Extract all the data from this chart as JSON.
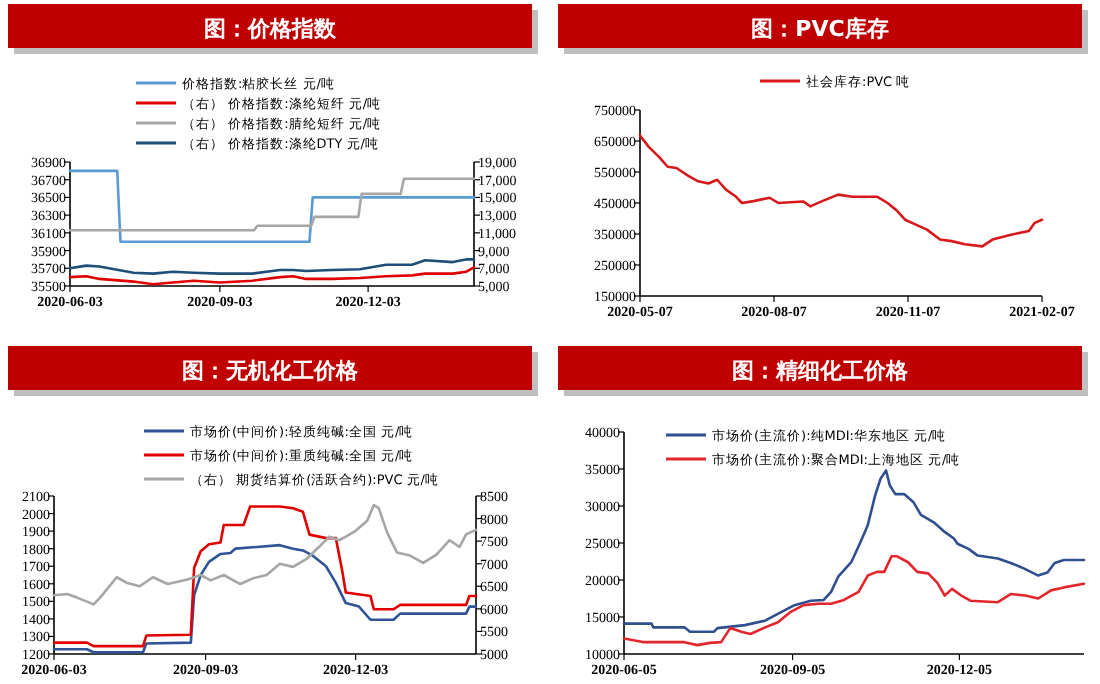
{
  "chart_data": [
    {
      "type": "line",
      "title": "图：价格指数",
      "legend": "top",
      "xlim": [
        "2020-06-03",
        "2021-02-06"
      ],
      "xticks": [
        "2020-06-03",
        "2020-09-03",
        "2020-12-03"
      ],
      "ylim": [
        35500,
        36900
      ],
      "yticks": [
        35500,
        35700,
        35900,
        36100,
        36300,
        36500,
        36700,
        36900
      ],
      "y2lim": [
        5000,
        19000
      ],
      "y2ticks": [
        {
          "value": 5000,
          "label": "5,000"
        },
        {
          "value": 7000,
          "label": "7,000"
        },
        {
          "value": 9000,
          "label": "9,000"
        },
        {
          "value": 11000,
          "label": "11,000"
        },
        {
          "value": 13000,
          "label": "13,000"
        },
        {
          "value": 15000,
          "label": "15,000"
        },
        {
          "value": 17000,
          "label": "17,000"
        },
        {
          "value": 19000,
          "label": "19,000"
        }
      ],
      "series": [
        {
          "name": "价格指数:粘胶长丝 元/吨",
          "color": "#5b9bd5",
          "x": [
            "2020-06-03",
            "2020-07-02",
            "2020-07-04",
            "2020-10-28",
            "2020-10-30",
            "2021-02-06"
          ],
          "values": [
            36800,
            36800,
            36000,
            36000,
            36500,
            36500
          ]
        },
        {
          "name": "（右） 价格指数:涤纶短纤 元/吨",
          "color": "#e00000",
          "axis": "y2",
          "x": [
            "2020-06-03",
            "2020-06-13",
            "2020-06-21",
            "2020-07-12",
            "2020-07-24",
            "2020-08-05",
            "2020-08-18",
            "2020-09-03",
            "2020-09-23",
            "2020-10-10",
            "2020-10-18",
            "2020-10-26",
            "2020-11-11",
            "2020-11-28",
            "2020-12-14",
            "2020-12-30",
            "2021-01-07",
            "2021-01-24",
            "2021-02-01",
            "2021-02-06"
          ],
          "values": [
            6000,
            6100,
            5800,
            5500,
            5200,
            5400,
            5600,
            5400,
            5600,
            6000,
            6100,
            5800,
            5800,
            5900,
            6100,
            6200,
            6400,
            6400,
            6600,
            7100
          ]
        },
        {
          "name": "（右） 价格指数:腈纶短纤 元/吨",
          "color": "#a6a6a6",
          "axis": "y2",
          "x": [
            "2020-06-03",
            "2020-09-24",
            "2020-09-26",
            "2020-10-29",
            "2020-10-31",
            "2020-11-27",
            "2020-11-29",
            "2020-12-23",
            "2020-12-25",
            "2021-02-06"
          ],
          "values": [
            11300,
            11300,
            11800,
            11800,
            12800,
            12800,
            15400,
            15400,
            17100,
            17100
          ]
        },
        {
          "name": "（右） 价格指数:涤纶DTY 元/吨",
          "color": "#1f4e79",
          "axis": "y2",
          "x": [
            "2020-06-03",
            "2020-06-13",
            "2020-06-21",
            "2020-07-12",
            "2020-07-24",
            "2020-08-05",
            "2020-08-18",
            "2020-09-03",
            "2020-09-23",
            "2020-10-10",
            "2020-10-18",
            "2020-10-26",
            "2020-11-11",
            "2020-11-28",
            "2020-12-14",
            "2020-12-30",
            "2021-01-07",
            "2021-01-24",
            "2021-02-01",
            "2021-02-06"
          ],
          "values": [
            7000,
            7300,
            7200,
            6500,
            6400,
            6600,
            6500,
            6400,
            6400,
            6800,
            6800,
            6700,
            6800,
            6900,
            7400,
            7400,
            7900,
            7700,
            8000,
            8000
          ]
        }
      ]
    },
    {
      "type": "line",
      "title": "图：PVC库存",
      "legend": "top",
      "xlim": [
        "2020-05-07",
        "2021-02-07"
      ],
      "xticks": [
        "2020-05-07",
        "2020-08-07",
        "2020-11-07",
        "2021-02-07"
      ],
      "ylim": [
        150000,
        750000
      ],
      "yticks": [
        150000,
        250000,
        350000,
        450000,
        550000,
        650000,
        750000
      ],
      "series": [
        {
          "name": "社会库存:PVC 吨",
          "color": "#d7191c",
          "x": [
            "2020-05-07",
            "2020-05-13",
            "2020-05-20",
            "2020-05-26",
            "2020-06-01",
            "2020-06-10",
            "2020-06-16",
            "2020-06-23",
            "2020-06-29",
            "2020-07-05",
            "2020-07-12",
            "2020-07-16",
            "2020-07-24",
            "2020-08-04",
            "2020-08-10",
            "2020-08-27",
            "2020-09-01",
            "2020-09-07",
            "2020-09-20",
            "2020-09-30",
            "2020-10-17",
            "2020-10-24",
            "2020-10-30",
            "2020-11-05",
            "2020-11-12",
            "2020-11-20",
            "2020-11-29",
            "2020-12-07",
            "2020-12-16",
            "2020-12-28",
            "2021-01-04",
            "2021-01-16",
            "2021-01-29",
            "2021-02-02",
            "2021-02-07"
          ],
          "values": [
            668000,
            631000,
            599000,
            567000,
            563000,
            535000,
            520000,
            513000,
            525000,
            493000,
            470000,
            450000,
            456000,
            467000,
            450000,
            455000,
            439000,
            452000,
            477000,
            470000,
            470000,
            450000,
            427000,
            396000,
            381000,
            364000,
            332000,
            327000,
            317000,
            310000,
            332000,
            347000,
            360000,
            386000,
            396000
          ]
        }
      ]
    },
    {
      "type": "line",
      "title": "图：无机化工价格",
      "legend": "top",
      "xlim": [
        "2020-06-03",
        "2021-02-14"
      ],
      "xticks": [
        "2020-06-03",
        "2020-09-03",
        "2020-12-03"
      ],
      "ylim": [
        1200,
        2100
      ],
      "yticks": [
        1200,
        1300,
        1400,
        1500,
        1600,
        1700,
        1800,
        1900,
        2000,
        2100
      ],
      "y2lim": [
        5000,
        8500
      ],
      "y2ticks": [
        5000,
        5500,
        6000,
        6500,
        7000,
        7500,
        8000,
        8500
      ],
      "series": [
        {
          "name": "市场价(中间价):轻质纯碱:全国 元/吨",
          "color": "#2f5597",
          "x": [
            "2020-06-03",
            "2020-06-23",
            "2020-06-27",
            "2020-07-27",
            "2020-07-29",
            "2020-08-25",
            "2020-08-27",
            "2020-08-31",
            "2020-09-05",
            "2020-09-12",
            "2020-09-18",
            "2020-09-21",
            "2020-10-18",
            "2020-10-26",
            "2020-11-01",
            "2020-11-07",
            "2020-11-15",
            "2020-11-21",
            "2020-11-27",
            "2020-12-05",
            "2020-12-12",
            "2020-12-26",
            "2020-12-30",
            "2021-02-08",
            "2021-02-10",
            "2021-02-14"
          ],
          "values": [
            1227,
            1227,
            1210,
            1210,
            1260,
            1265,
            1535,
            1650,
            1725,
            1770,
            1775,
            1800,
            1820,
            1800,
            1790,
            1760,
            1700,
            1605,
            1490,
            1470,
            1395,
            1395,
            1430,
            1430,
            1470,
            1470
          ]
        },
        {
          "name": "市场价(中间价):重质纯碱:全国 元/吨",
          "color": "#e00000",
          "x": [
            "2020-06-03",
            "2020-06-23",
            "2020-06-27",
            "2020-07-27",
            "2020-07-29",
            "2020-08-25",
            "2020-08-27",
            "2020-08-31",
            "2020-09-05",
            "2020-09-12",
            "2020-09-14",
            "2020-09-26",
            "2020-09-30",
            "2020-10-18",
            "2020-10-26",
            "2020-11-01",
            "2020-11-05",
            "2020-11-15",
            "2020-11-21",
            "2020-11-25",
            "2020-11-27",
            "2020-12-12",
            "2020-12-14",
            "2020-12-26",
            "2020-12-30",
            "2021-02-08",
            "2021-02-10",
            "2021-02-14"
          ],
          "values": [
            1265,
            1265,
            1245,
            1245,
            1305,
            1310,
            1690,
            1785,
            1825,
            1835,
            1935,
            1935,
            2040,
            2040,
            2030,
            2010,
            1880,
            1860,
            1860,
            1665,
            1550,
            1530,
            1455,
            1455,
            1480,
            1480,
            1530,
            1530
          ]
        },
        {
          "name": "（右） 期货结算价(活跃合约):PVC 元/吨",
          "color": "#a6a6a6",
          "axis": "y2",
          "x": [
            "2020-06-03",
            "2020-06-11",
            "2020-06-17",
            "2020-06-27",
            "2020-07-01",
            "2020-07-11",
            "2020-07-17",
            "2020-07-25",
            "2020-08-02",
            "2020-08-11",
            "2020-08-23",
            "2020-08-31",
            "2020-09-06",
            "2020-09-14",
            "2020-09-24",
            "2020-10-02",
            "2020-10-10",
            "2020-10-18",
            "2020-10-26",
            "2020-11-03",
            "2020-11-11",
            "2020-11-17",
            "2020-11-23",
            "2020-11-27",
            "2020-12-03",
            "2020-12-10",
            "2020-12-14",
            "2020-12-17",
            "2020-12-22",
            "2020-12-28",
            "2021-01-05",
            "2021-01-13",
            "2021-01-21",
            "2021-01-29",
            "2021-02-04",
            "2021-02-08",
            "2021-02-14"
          ],
          "values": [
            6300,
            6330,
            6250,
            6100,
            6250,
            6700,
            6580,
            6500,
            6700,
            6550,
            6650,
            6750,
            6630,
            6750,
            6550,
            6680,
            6750,
            7000,
            6930,
            7100,
            7380,
            7600,
            7520,
            7600,
            7730,
            7950,
            8300,
            8230,
            7700,
            7250,
            7180,
            7020,
            7200,
            7520,
            7370,
            7650,
            7750
          ]
        }
      ]
    },
    {
      "type": "line",
      "title": "图：精细化工价格",
      "legend": "top",
      "xlim": [
        "2020-06-05",
        "2021-02-11"
      ],
      "xticks": [
        "2020-06-05",
        "2020-09-05",
        "2020-12-05"
      ],
      "ylim": [
        10000,
        40000
      ],
      "yticks": [
        10000,
        15000,
        20000,
        25000,
        30000,
        35000,
        40000
      ],
      "series": [
        {
          "name": "市场价(主流价):纯MDI:华东地区 元/吨",
          "color": "#2f4f8f",
          "x": [
            "2020-06-05",
            "2020-06-20",
            "2020-06-21",
            "2020-07-08",
            "2020-07-11",
            "2020-07-24",
            "2020-07-26",
            "2020-08-10",
            "2020-08-21",
            "2020-08-30",
            "2020-09-06",
            "2020-09-15",
            "2020-09-22",
            "2020-09-26",
            "2020-09-30",
            "2020-10-07",
            "2020-10-12",
            "2020-10-16",
            "2020-10-20",
            "2020-10-23",
            "2020-10-26",
            "2020-10-28",
            "2020-10-31",
            "2020-11-05",
            "2020-11-10",
            "2020-11-14",
            "2020-11-21",
            "2020-11-27",
            "2020-12-02",
            "2020-12-04",
            "2020-12-10",
            "2020-12-15",
            "2020-12-26",
            "2021-01-02",
            "2021-01-08",
            "2021-01-13",
            "2021-01-17",
            "2021-01-22",
            "2021-01-26",
            "2021-01-31",
            "2021-02-11"
          ],
          "values": [
            14100,
            14100,
            13600,
            13600,
            13000,
            13000,
            13500,
            13900,
            14500,
            15700,
            16600,
            17200,
            17300,
            18400,
            20500,
            22400,
            25100,
            27400,
            31400,
            33700,
            34800,
            32800,
            31600,
            31600,
            30500,
            28800,
            27800,
            26500,
            25600,
            24900,
            24200,
            23300,
            22900,
            22300,
            21700,
            21100,
            20600,
            21000,
            22300,
            22700,
            22700
          ]
        },
        {
          "name": "市场价(主流价):聚合MDI:上海地区 元/吨",
          "color": "#e3262b",
          "x": [
            "2020-06-05",
            "2020-06-16",
            "2020-07-08",
            "2020-07-15",
            "2020-07-22",
            "2020-07-28",
            "2020-08-02",
            "2020-08-08",
            "2020-08-13",
            "2020-08-21",
            "2020-08-28",
            "2020-09-04",
            "2020-09-11",
            "2020-09-19",
            "2020-09-26",
            "2020-10-03",
            "2020-10-11",
            "2020-10-16",
            "2020-10-21",
            "2020-10-25",
            "2020-10-29",
            "2020-11-01",
            "2020-11-07",
            "2020-11-12",
            "2020-11-18",
            "2020-11-23",
            "2020-11-27",
            "2020-12-01",
            "2020-12-06",
            "2020-12-11",
            "2020-12-26",
            "2021-01-02",
            "2021-01-10",
            "2021-01-17",
            "2021-01-24",
            "2021-01-31",
            "2021-02-11"
          ],
          "values": [
            12100,
            11600,
            11600,
            11200,
            11500,
            11600,
            13500,
            13000,
            12700,
            13600,
            14300,
            15700,
            16600,
            16800,
            16800,
            17300,
            18400,
            20600,
            21100,
            21100,
            23200,
            23200,
            22400,
            21100,
            20900,
            19600,
            17900,
            18800,
            17900,
            17200,
            17000,
            18100,
            17900,
            17500,
            18600,
            19000,
            19500
          ]
        }
      ]
    }
  ]
}
